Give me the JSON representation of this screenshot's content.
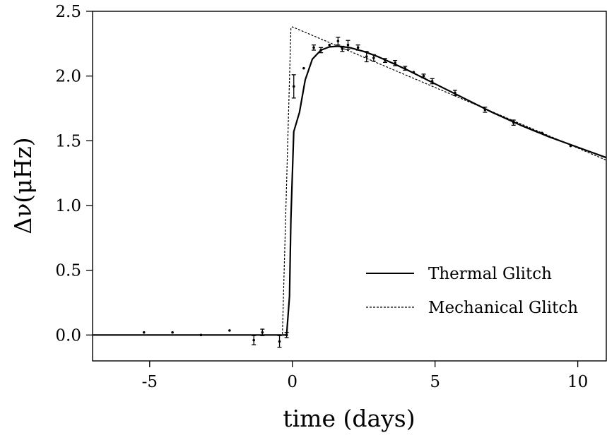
{
  "chart_data": {
    "type": "line",
    "title": "",
    "xlabel": "time (days)",
    "ylabel": "Δν(μHz)",
    "xlim": [
      -7,
      11
    ],
    "ylim": [
      -0.2,
      2.5
    ],
    "x_ticks": [
      -5,
      0,
      5,
      10
    ],
    "x_tick_labels": [
      "-5",
      "0",
      "5",
      "10"
    ],
    "y_ticks": [
      0.0,
      0.5,
      1.0,
      1.5,
      2.0,
      2.5
    ],
    "y_tick_labels": [
      "0.0",
      "0.5",
      "1.0",
      "1.5",
      "2.0",
      "2.5"
    ],
    "grid": false,
    "legend_position": "bottom-right",
    "series": [
      {
        "name": "Thermal Glitch",
        "style": "solid",
        "x": [
          -7,
          -0.2,
          -0.1,
          -0.05,
          0.05,
          0.25,
          0.45,
          0.7,
          1.0,
          1.3,
          1.6,
          2.0,
          2.5,
          3.0,
          3.5,
          4.0,
          5.0,
          6.0,
          7.0,
          8.0,
          9.0,
          10.0,
          11.0
        ],
        "y": [
          0.0,
          0.0,
          0.3,
          0.9,
          1.57,
          1.72,
          1.97,
          2.13,
          2.2,
          2.225,
          2.23,
          2.22,
          2.19,
          2.15,
          2.1,
          2.05,
          1.94,
          1.83,
          1.72,
          1.62,
          1.53,
          1.45,
          1.37
        ]
      },
      {
        "name": "Mechanical Glitch",
        "style": "dashed",
        "x": [
          -7,
          -0.35,
          -0.05,
          0.0,
          11.0
        ],
        "y": [
          0.0,
          0.0,
          2.37,
          2.38,
          1.35
        ]
      }
    ],
    "data_points": [
      {
        "x": -5.2,
        "y": 0.02,
        "err": 0.0
      },
      {
        "x": -4.2,
        "y": 0.02,
        "err": 0.0
      },
      {
        "x": -3.2,
        "y": 0.0,
        "err": 0.0
      },
      {
        "x": -2.2,
        "y": 0.035,
        "err": 0.0
      },
      {
        "x": -1.35,
        "y": -0.04,
        "err": 0.035
      },
      {
        "x": -1.05,
        "y": 0.02,
        "err": 0.025
      },
      {
        "x": -0.45,
        "y": -0.05,
        "err": 0.045
      },
      {
        "x": -0.2,
        "y": 0.0,
        "err": 0.02
      },
      {
        "x": 0.05,
        "y": 1.92,
        "err": 0.09
      },
      {
        "x": 0.4,
        "y": 2.06,
        "err": 0.0
      },
      {
        "x": 0.75,
        "y": 2.22,
        "err": 0.02
      },
      {
        "x": 1.0,
        "y": 2.2,
        "err": 0.02
      },
      {
        "x": 1.3,
        "y": 2.24,
        "err": 0.0
      },
      {
        "x": 1.6,
        "y": 2.27,
        "err": 0.03
      },
      {
        "x": 1.75,
        "y": 2.21,
        "err": 0.02
      },
      {
        "x": 1.95,
        "y": 2.24,
        "err": 0.035
      },
      {
        "x": 2.3,
        "y": 2.22,
        "err": 0.02
      },
      {
        "x": 2.6,
        "y": 2.15,
        "err": 0.04
      },
      {
        "x": 2.85,
        "y": 2.14,
        "err": 0.025
      },
      {
        "x": 3.25,
        "y": 2.12,
        "err": 0.015
      },
      {
        "x": 3.6,
        "y": 2.1,
        "err": 0.02
      },
      {
        "x": 3.95,
        "y": 2.06,
        "err": 0.015
      },
      {
        "x": 4.25,
        "y": 2.03,
        "err": 0.0
      },
      {
        "x": 4.6,
        "y": 2.0,
        "err": 0.015
      },
      {
        "x": 4.9,
        "y": 1.96,
        "err": 0.02
      },
      {
        "x": 5.7,
        "y": 1.87,
        "err": 0.02
      },
      {
        "x": 6.75,
        "y": 1.74,
        "err": 0.02
      },
      {
        "x": 7.75,
        "y": 1.64,
        "err": 0.02
      },
      {
        "x": 8.75,
        "y": 1.56,
        "err": 0.0
      },
      {
        "x": 9.75,
        "y": 1.46,
        "err": 0.0
      }
    ]
  }
}
